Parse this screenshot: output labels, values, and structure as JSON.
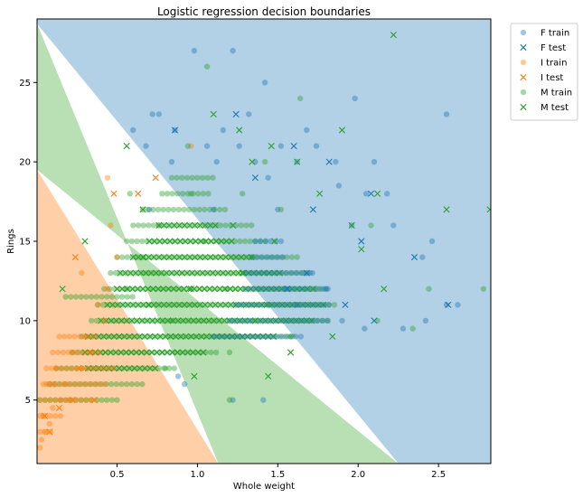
{
  "chart_data": {
    "type": "scatter",
    "title": "Logistic regression decision boundaries",
    "xlabel": "Whole weight",
    "ylabel": "Rings",
    "xlim": [
      0.002,
      2.8255
    ],
    "ylim": [
      1,
      29
    ],
    "xticks": [
      0.5,
      1.0,
      1.5,
      2.0,
      2.5
    ],
    "xtick_labels": [
      "0.5",
      "1.0",
      "1.5",
      "2.0",
      "2.5"
    ],
    "yticks": [
      5,
      10,
      15,
      20,
      25
    ],
    "ytick_labels": [
      "5",
      "10",
      "15",
      "20",
      "25"
    ],
    "grid": false,
    "legend_position": "outside top-right",
    "regions": [
      {
        "class": "I",
        "color": "#ffd0a8",
        "polygon": [
          [
            0.002,
            1
          ],
          [
            0.002,
            19.5
          ],
          [
            1.13,
            1
          ]
        ]
      },
      {
        "class": "M",
        "color": "#b8e0b4",
        "polygon": [
          [
            0.002,
            19.5
          ],
          [
            0.002,
            28.7
          ],
          [
            1.13,
            1
          ],
          [
            2.25,
            1
          ]
        ]
      },
      {
        "class": "F",
        "color": "#b3d1e6",
        "polygon": [
          [
            0.002,
            28.7
          ],
          [
            0.002,
            29
          ],
          [
            2.8255,
            29
          ],
          [
            2.8255,
            1
          ],
          [
            2.25,
            1
          ]
        ]
      }
    ],
    "series": [
      {
        "name": "F train",
        "marker": "o",
        "color": "#1f77b4",
        "points": [
          [
            0.72,
            23
          ],
          [
            0.76,
            23
          ],
          [
            0.98,
            27
          ],
          [
            1.22,
            27
          ],
          [
            1.42,
            25
          ],
          [
            0.6,
            22
          ],
          [
            0.86,
            22
          ],
          [
            1.16,
            22
          ],
          [
            1.32,
            23
          ],
          [
            1.68,
            22
          ],
          [
            1.98,
            24
          ],
          [
            2.55,
            23
          ],
          [
            0.68,
            21
          ],
          [
            1.06,
            21
          ],
          [
            1.26,
            21
          ],
          [
            1.52,
            21
          ],
          [
            1.74,
            21
          ],
          [
            0.84,
            20
          ],
          [
            1.12,
            20
          ],
          [
            1.36,
            20
          ],
          [
            1.62,
            20
          ],
          [
            1.86,
            20
          ],
          [
            2.1,
            20
          ],
          [
            1.44,
            19
          ],
          [
            1.88,
            18.5
          ],
          [
            2.05,
            18
          ],
          [
            2.18,
            18
          ],
          [
            0.7,
            17
          ],
          [
            1.1,
            17
          ],
          [
            1.5,
            17
          ],
          [
            1.96,
            16
          ],
          [
            2.22,
            16
          ],
          [
            2.4,
            14
          ],
          [
            2.46,
            15
          ],
          [
            2.62,
            11
          ],
          [
            2.55,
            11
          ],
          [
            2.28,
            9.5
          ],
          [
            2.42,
            10
          ],
          [
            1.55,
            12
          ],
          [
            1.7,
            13
          ],
          [
            1.8,
            12
          ],
          [
            1.62,
            11
          ],
          [
            1.9,
            10
          ],
          [
            2.04,
            9.5
          ],
          [
            1.22,
            5
          ],
          [
            1.41,
            5
          ],
          [
            0.88,
            6.5
          ],
          [
            0.92,
            6
          ]
        ]
      },
      {
        "name": "F test",
        "marker": "x",
        "color": "#1f77b4",
        "points": [
          [
            0.86,
            22
          ],
          [
            1.24,
            23
          ],
          [
            1.6,
            21
          ],
          [
            1.82,
            20
          ],
          [
            2.08,
            18
          ],
          [
            1.36,
            19
          ],
          [
            1.72,
            17
          ],
          [
            2.02,
            15
          ],
          [
            2.35,
            14
          ],
          [
            1.92,
            11
          ],
          [
            2.1,
            10
          ],
          [
            1.56,
            12
          ],
          [
            1.68,
            13
          ],
          [
            2.56,
            11
          ]
        ]
      },
      {
        "name": "I train",
        "marker": "o",
        "color": "#ff7f0e",
        "points": [
          [
            0.02,
            2
          ],
          [
            0.03,
            2.5
          ],
          [
            0.05,
            3
          ],
          [
            0.08,
            3.5
          ],
          [
            0.04,
            4
          ],
          [
            0.1,
            4.5
          ],
          [
            0.15,
            5
          ],
          [
            0.2,
            5
          ],
          [
            0.06,
            6
          ],
          [
            0.18,
            6
          ],
          [
            0.12,
            7
          ],
          [
            0.28,
            7
          ],
          [
            0.22,
            8
          ],
          [
            0.34,
            8
          ],
          [
            0.3,
            9
          ],
          [
            0.42,
            10
          ],
          [
            0.38,
            11
          ],
          [
            0.44,
            12
          ],
          [
            0.28,
            13
          ],
          [
            0.5,
            14
          ],
          [
            0.46,
            16
          ],
          [
            0.96,
            21
          ],
          [
            0.44,
            19
          ]
        ]
      },
      {
        "name": "I test",
        "marker": "x",
        "color": "#ff7f0e",
        "points": [
          [
            0.08,
            3
          ],
          [
            0.05,
            4
          ],
          [
            0.14,
            4.5
          ],
          [
            0.22,
            5
          ],
          [
            0.36,
            5
          ],
          [
            0.1,
            6
          ],
          [
            0.26,
            7
          ],
          [
            0.24,
            14
          ],
          [
            0.48,
            18
          ],
          [
            0.63,
            18
          ],
          [
            0.74,
            19
          ]
        ]
      },
      {
        "name": "M train",
        "marker": "o",
        "color": "#2ca02c",
        "points": [
          [
            1.06,
            26
          ],
          [
            1.64,
            24
          ],
          [
            0.94,
            21
          ],
          [
            1.42,
            20
          ],
          [
            0.58,
            18
          ],
          [
            0.96,
            18
          ],
          [
            1.28,
            18
          ],
          [
            1.52,
            17
          ],
          [
            2.08,
            16
          ],
          [
            0.76,
            16
          ],
          [
            1.04,
            15
          ],
          [
            1.34,
            14
          ],
          [
            0.56,
            12
          ],
          [
            1.18,
            12
          ],
          [
            2.78,
            12
          ],
          [
            1.44,
            11
          ],
          [
            0.84,
            10
          ],
          [
            2.12,
            10
          ],
          [
            1.58,
            9
          ],
          [
            1.2,
            8
          ],
          [
            0.8,
            7
          ],
          [
            1.2,
            5
          ],
          [
            2.34,
            9.5
          ],
          [
            2.44,
            12
          ]
        ]
      },
      {
        "name": "M test",
        "marker": "x",
        "color": "#2ca02c",
        "points": [
          [
            1.1,
            23
          ],
          [
            1.26,
            22
          ],
          [
            1.46,
            21
          ],
          [
            1.9,
            22
          ],
          [
            0.56,
            21
          ],
          [
            1.34,
            20
          ],
          [
            1.62,
            20
          ],
          [
            2.22,
            28
          ],
          [
            1.76,
            18
          ],
          [
            2.12,
            18
          ],
          [
            0.66,
            17
          ],
          [
            1.22,
            16
          ],
          [
            1.96,
            16
          ],
          [
            2.55,
            17
          ],
          [
            2.82,
            17
          ],
          [
            0.3,
            15
          ],
          [
            1.48,
            15
          ],
          [
            2.02,
            14.5
          ],
          [
            0.66,
            14
          ],
          [
            1.28,
            13
          ],
          [
            0.16,
            12
          ],
          [
            0.96,
            12
          ],
          [
            1.72,
            12
          ],
          [
            2.16,
            12
          ],
          [
            0.7,
            11
          ],
          [
            1.36,
            10
          ],
          [
            1.84,
            9
          ],
          [
            1.58,
            8
          ],
          [
            0.98,
            6.5
          ],
          [
            1.44,
            6.5
          ]
        ]
      }
    ],
    "bands": [
      {
        "series": "M train",
        "marker": "o",
        "color": "#2ca02c",
        "segments": [
          [
            5,
            0.02,
            0.5
          ],
          [
            6,
            0.08,
            0.66
          ],
          [
            7,
            0.12,
            0.86
          ],
          [
            8,
            0.22,
            1.14
          ],
          [
            9,
            0.28,
            1.6
          ],
          [
            10,
            0.34,
            1.84
          ],
          [
            11,
            0.38,
            1.86
          ],
          [
            12,
            0.42,
            1.82
          ],
          [
            13,
            0.46,
            1.7
          ],
          [
            14,
            0.5,
            1.62
          ],
          [
            15,
            0.56,
            1.44
          ],
          [
            16,
            0.6,
            1.34
          ],
          [
            17,
            0.66,
            1.18
          ],
          [
            18,
            0.78,
            1.08
          ],
          [
            19,
            0.84,
            1.1
          ],
          [
            11.5,
            0.18,
            0.6
          ]
        ]
      },
      {
        "series": "M test",
        "marker": "x",
        "color": "#2ca02c",
        "segments": [
          [
            8,
            0.3,
            1.06
          ],
          [
            9,
            0.32,
            1.5
          ],
          [
            10,
            0.4,
            1.74
          ],
          [
            11,
            0.44,
            1.8
          ],
          [
            12,
            0.5,
            1.7
          ],
          [
            13,
            0.52,
            1.52
          ],
          [
            14,
            0.6,
            1.36
          ],
          [
            15,
            0.7,
            1.24
          ],
          [
            16,
            0.76,
            1.12
          ],
          [
            7,
            0.32,
            0.74
          ]
        ]
      },
      {
        "series": "I train",
        "marker": "o",
        "color": "#ff7f0e",
        "segments": [
          [
            3,
            0.02,
            0.1
          ],
          [
            4,
            0.02,
            0.16
          ],
          [
            5,
            0.02,
            0.36
          ],
          [
            6,
            0.04,
            0.44
          ],
          [
            7,
            0.06,
            0.48
          ],
          [
            8,
            0.1,
            0.4
          ],
          [
            9,
            0.14,
            0.38
          ]
        ]
      },
      {
        "series": "F train",
        "marker": "o",
        "color": "#1f77b4",
        "segments": [
          [
            9,
            1.1,
            1.66
          ],
          [
            10,
            1.2,
            1.82
          ],
          [
            11,
            1.24,
            1.84
          ],
          [
            12,
            1.3,
            1.84
          ],
          [
            13,
            1.3,
            1.72
          ],
          [
            14,
            1.34,
            1.56
          ],
          [
            15,
            1.36,
            1.52
          ]
        ]
      }
    ]
  }
}
